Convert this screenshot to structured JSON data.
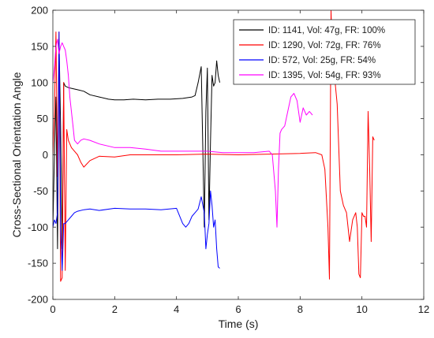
{
  "chart_data": {
    "type": "line",
    "title": "",
    "xlabel": "Time (s)",
    "ylabel": "Cross-Sectional Orientation Angle",
    "xlim": [
      0,
      12
    ],
    "ylim": [
      -200,
      200
    ],
    "xticks": [
      0,
      2,
      4,
      6,
      8,
      10,
      12
    ],
    "yticks": [
      -200,
      -150,
      -100,
      -50,
      0,
      50,
      100,
      150,
      200
    ],
    "grid": false,
    "legend_position": "top-right",
    "series": [
      {
        "name": "ID: 1141, Vol: 47g, FR: 100%",
        "color": "#000000",
        "x": [
          0,
          0.05,
          0.1,
          0.15,
          0.2,
          0.25,
          0.3,
          0.35,
          0.4,
          0.5,
          0.6,
          0.8,
          1.0,
          1.2,
          1.5,
          1.8,
          2.0,
          2.3,
          2.6,
          3.0,
          3.4,
          3.8,
          4.2,
          4.5,
          4.6,
          4.7,
          4.8,
          4.85,
          4.9,
          4.95,
          5.0,
          5.05,
          5.1,
          5.15,
          5.2,
          5.25,
          5.3,
          5.35,
          5.4
        ],
        "y": [
          -100,
          0,
          80,
          -130,
          160,
          40,
          -130,
          100,
          95,
          93,
          92,
          90,
          88,
          83,
          80,
          77,
          76,
          76,
          77,
          76,
          77,
          77,
          78,
          80,
          82,
          100,
          122,
          10,
          -100,
          60,
          120,
          -90,
          20,
          110,
          95,
          100,
          130,
          110,
          100
        ]
      },
      {
        "name": "ID: 1290, Vol: 72g, FR: 76%",
        "color": "#ff0000",
        "x": [
          0,
          0.05,
          0.1,
          0.15,
          0.2,
          0.25,
          0.3,
          0.35,
          0.4,
          0.45,
          0.5,
          0.6,
          0.7,
          0.8,
          0.9,
          1.0,
          1.2,
          1.5,
          2.0,
          2.5,
          3.0,
          4.0,
          5.0,
          6.0,
          7.0,
          8.0,
          8.5,
          8.7,
          8.8,
          8.9,
          8.95,
          9.0,
          9.05,
          9.1,
          9.2,
          9.3,
          9.4,
          9.5,
          9.6,
          9.7,
          9.8,
          9.85,
          9.9,
          9.95,
          10.0,
          10.05,
          10.1,
          10.15,
          10.2,
          10.25,
          10.3,
          10.35,
          10.4
        ],
        "y": [
          0,
          60,
          170,
          -30,
          170,
          -175,
          -170,
          100,
          -160,
          35,
          20,
          10,
          5,
          0,
          -10,
          -17,
          -8,
          -2,
          -3,
          0,
          0,
          0,
          1,
          0,
          1,
          2,
          3,
          0,
          -20,
          -100,
          -172,
          200,
          120,
          115,
          70,
          -50,
          -70,
          -80,
          -120,
          -90,
          -80,
          -100,
          -165,
          -170,
          -80,
          -85,
          -85,
          -100,
          60,
          -20,
          -120,
          25,
          20
        ]
      },
      {
        "name": "ID: 572, Vol: 25g, FR: 54%",
        "color": "#0000ff",
        "x": [
          0,
          0.05,
          0.1,
          0.15,
          0.2,
          0.25,
          0.3,
          0.35,
          0.4,
          0.5,
          0.6,
          0.7,
          0.8,
          1.0,
          1.2,
          1.5,
          2.0,
          2.5,
          3.0,
          3.5,
          4.0,
          4.2,
          4.3,
          4.4,
          4.5,
          4.6,
          4.7,
          4.8,
          4.9,
          4.95,
          5.0,
          5.05,
          5.1,
          5.15,
          5.2,
          5.25,
          5.3,
          5.35,
          5.4
        ],
        "y": [
          -100,
          -90,
          -95,
          -80,
          170,
          -100,
          -160,
          -95,
          -95,
          -90,
          -85,
          -80,
          -78,
          -76,
          -75,
          -77,
          -74,
          -75,
          -75,
          -76,
          -74,
          -95,
          -100,
          -95,
          -85,
          -80,
          -75,
          -58,
          -80,
          -130,
          -110,
          -95,
          -50,
          -70,
          -100,
          -90,
          -130,
          -155,
          -157
        ]
      },
      {
        "name": "ID: 1395, Vol: 54g, FR: 93%",
        "color": "#ff00ff",
        "x": [
          0,
          0.05,
          0.1,
          0.15,
          0.2,
          0.25,
          0.3,
          0.35,
          0.4,
          0.45,
          0.5,
          0.55,
          0.6,
          0.65,
          0.7,
          0.8,
          0.9,
          1.0,
          1.2,
          1.5,
          2.0,
          2.5,
          3.0,
          3.5,
          4.0,
          4.5,
          5.0,
          5.5,
          6.0,
          6.5,
          7.0,
          7.1,
          7.2,
          7.25,
          7.3,
          7.35,
          7.4,
          7.5,
          7.6,
          7.7,
          7.8,
          7.9,
          8.0,
          8.1,
          8.2,
          8.3,
          8.4
        ],
        "y": [
          100,
          120,
          150,
          160,
          140,
          150,
          155,
          150,
          145,
          130,
          110,
          80,
          60,
          40,
          20,
          15,
          20,
          22,
          20,
          15,
          10,
          10,
          8,
          5,
          5,
          5,
          5,
          3,
          3,
          3,
          5,
          0,
          -50,
          -100,
          -20,
          30,
          35,
          40,
          60,
          80,
          85,
          75,
          45,
          65,
          55,
          60,
          55
        ]
      }
    ]
  }
}
